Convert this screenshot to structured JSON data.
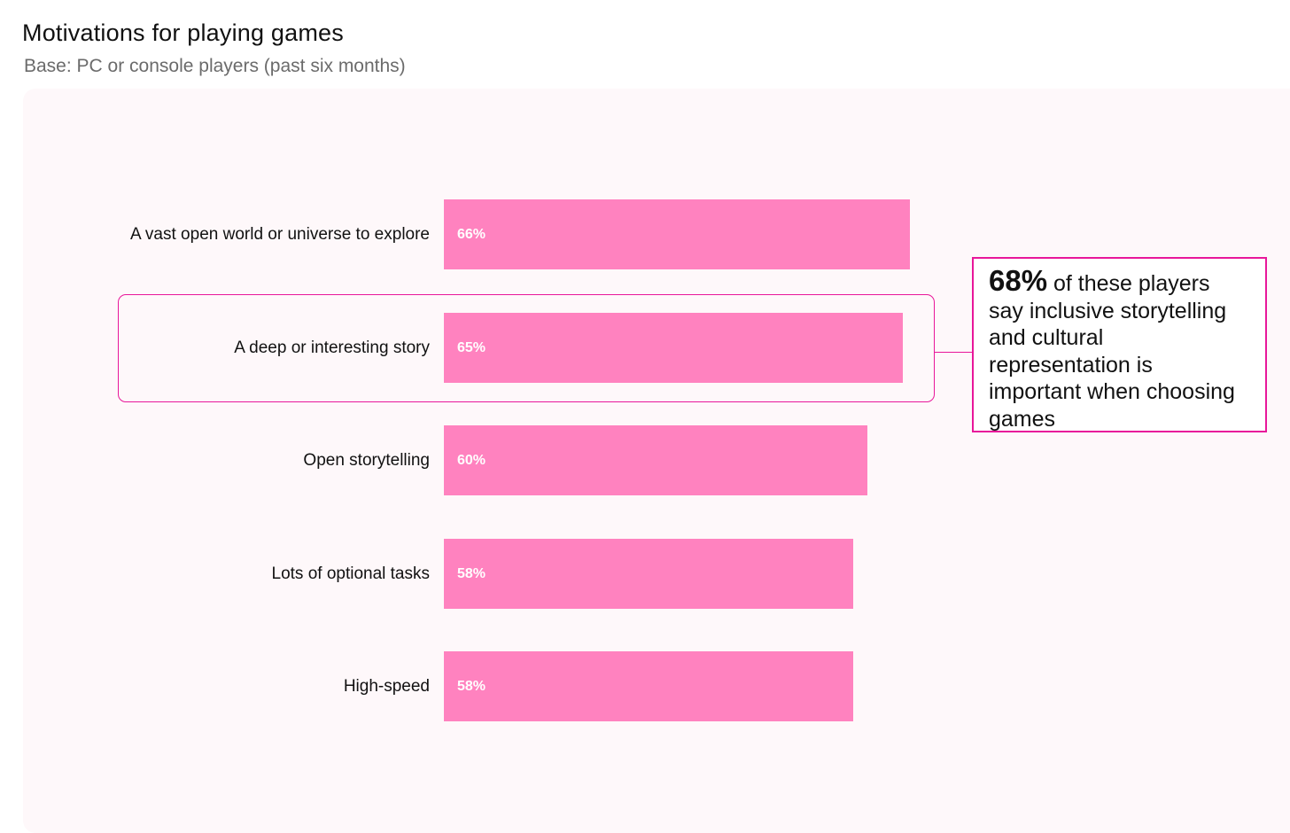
{
  "chart_data": {
    "type": "bar",
    "orientation": "horizontal",
    "title": "Motivations for playing games",
    "subtitle": "Base: PC or console players (past six months)",
    "categories": [
      "A vast open world or universe to explore",
      "A deep or interesting story",
      "Open storytelling",
      "Lots of optional tasks",
      "High-speed"
    ],
    "values": [
      66,
      65,
      60,
      58,
      58
    ],
    "value_labels": [
      "66%",
      "65%",
      "60%",
      "58%",
      "58%"
    ],
    "xlim": [
      0,
      100
    ],
    "grid": false,
    "highlighted_category": "A deep or interesting story",
    "colors": {
      "bar": "#ff82bf",
      "highlight": "#e8179a",
      "panel": "#fef8fa"
    }
  },
  "callout": {
    "stat": "68%",
    "text": " of these players say inclusive storytelling and cultural representation is important when choosing games"
  }
}
